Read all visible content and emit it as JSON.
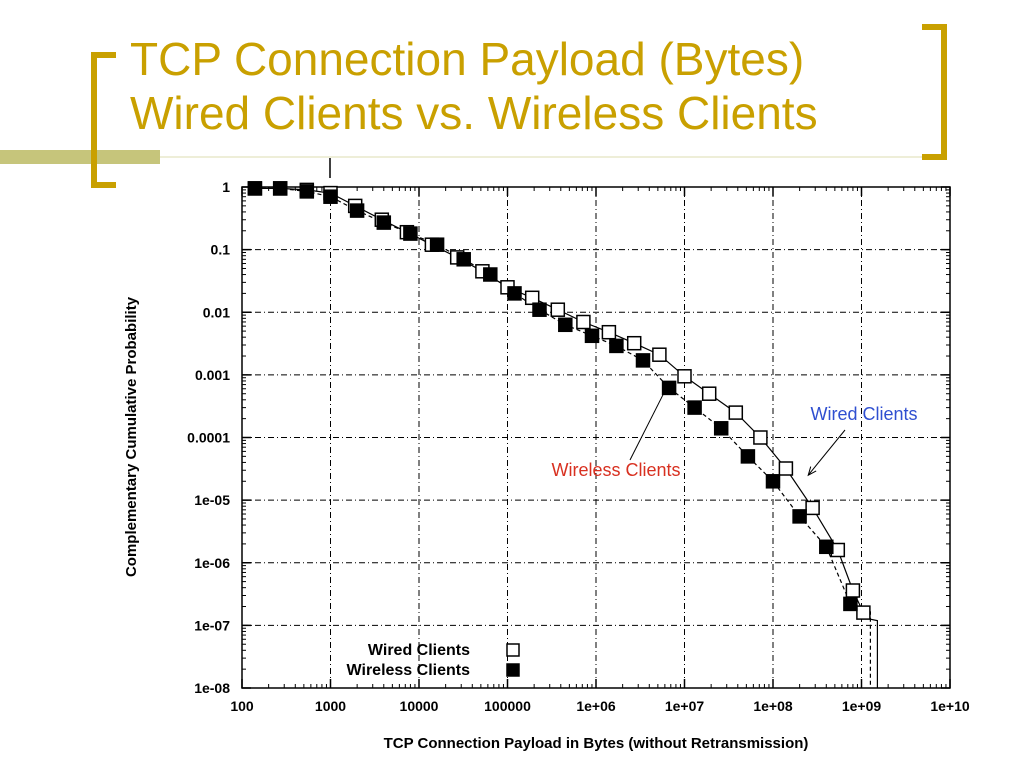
{
  "slide": {
    "title_line1": "TCP Connection Payload (Bytes)",
    "title_line2": "Wired Clients vs. Wireless Clients",
    "title_color": "#c9a000",
    "bracket_color": "#c9a000",
    "accent_bar_color": "#c6c57b"
  },
  "chart_data": {
    "type": "line",
    "title": "",
    "xlabel": "TCP Connection Payload in Bytes (without Retransmission)",
    "ylabel": "Complementary Cumulative Probability",
    "x_scale": "log",
    "y_scale": "log",
    "xlim": [
      100,
      10000000000
    ],
    "ylim": [
      1e-08,
      1
    ],
    "grid": true,
    "legend_position": "bottom-left",
    "x_tick_labels": [
      "100",
      "1000",
      "10000",
      "100000",
      "1e+06",
      "1e+07",
      "1e+08",
      "1e+09",
      "1e+10"
    ],
    "y_tick_labels": [
      "1",
      "0.1",
      "0.01",
      "0.001",
      "0.0001",
      "1e-05",
      "1e-06",
      "1e-07",
      "1e-08"
    ],
    "series": [
      {
        "name": "Wired Clients",
        "marker": "hollow-square",
        "line": "solid",
        "color": "#000000",
        "x": [
          140,
          270,
          540,
          1000,
          1900,
          3800,
          7300,
          14000,
          27000,
          52000,
          100000,
          190000,
          370000,
          720000,
          1400000,
          2700000,
          5200000,
          10000000,
          19000000,
          38000000,
          72000000,
          140000000,
          280000000,
          540000000,
          800000000,
          1050000000
        ],
        "y": [
          0.95,
          0.95,
          0.9,
          0.8,
          0.5,
          0.3,
          0.19,
          0.12,
          0.075,
          0.045,
          0.025,
          0.017,
          0.011,
          0.007,
          0.0048,
          0.0032,
          0.0021,
          0.00095,
          0.0005,
          0.00025,
          0.0001,
          3.2e-05,
          7.5e-06,
          1.6e-06,
          3.6e-07,
          1.6e-07
        ]
      },
      {
        "name": "Wireless Clients",
        "marker": "filled-square",
        "line": "dashed",
        "color": "#000000",
        "x": [
          140,
          270,
          540,
          1000,
          2000,
          4000,
          8000,
          16000,
          32000,
          64000,
          120000,
          230000,
          450000,
          900000,
          1700000,
          3400000,
          6700000,
          13000000,
          26000000,
          52000000,
          100000000,
          200000000,
          400000000,
          750000000
        ],
        "y": [
          0.95,
          0.95,
          0.85,
          0.7,
          0.42,
          0.27,
          0.18,
          0.12,
          0.07,
          0.04,
          0.02,
          0.011,
          0.0063,
          0.0042,
          0.0029,
          0.0017,
          0.00062,
          0.0003,
          0.00014,
          5e-05,
          2e-05,
          5.5e-06,
          1.8e-06,
          2.2e-07
        ]
      }
    ],
    "annotations": [
      {
        "text": "Wired Clients",
        "color": "#2f4fd0",
        "points_to": [
          250000000,
          2.5e-05
        ]
      },
      {
        "text": "Wireless Clients",
        "color": "#d83020",
        "points_to": [
          6700000,
          0.00075
        ]
      }
    ]
  }
}
